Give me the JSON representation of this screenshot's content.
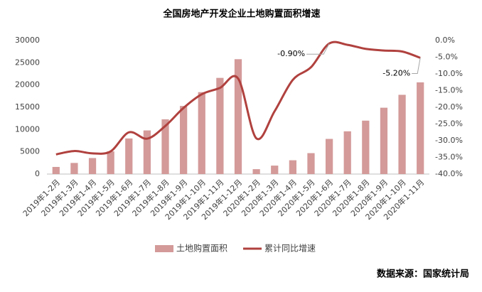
{
  "chart_data": {
    "type": "bar_line",
    "title": "全国房地产开发企业土地购置面积增速",
    "categories": [
      "2019年1-2月",
      "2019年1-3月",
      "2019年1-4月",
      "2019年1-5月",
      "2019年1-6月",
      "2019年1-7月",
      "2019年1-8月",
      "2019年1-9月",
      "2019年1-10月",
      "2019年1-11月",
      "2019年1-12月",
      "2020年1-2月",
      "2020年1-3月",
      "2020年1-4月",
      "2020年1-5月",
      "2020年1-6月",
      "2020年1-7月",
      "2020年1-8月",
      "2020年1-9月",
      "2020年1-10月",
      "2020年1-11月"
    ],
    "series": [
      {
        "name": "土地购置面积",
        "type": "bar",
        "color": "#d39a99",
        "values": [
          1600,
          2500,
          3600,
          5100,
          8000,
          9800,
          12300,
          15300,
          18400,
          21600,
          25800,
          1100,
          1900,
          3100,
          4700,
          7900,
          9600,
          12000,
          14900,
          17800,
          20600
        ]
      },
      {
        "name": "累计同比增速",
        "type": "line",
        "axis": "y2",
        "color": "#b0413e",
        "values": [
          -34.1,
          -33.1,
          -33.8,
          -33.2,
          -27.5,
          -29.4,
          -25.6,
          -20.2,
          -16.1,
          -14.2,
          -11.4,
          -29.3,
          -21.2,
          -11.8,
          -8.0,
          -0.9,
          -1.3,
          -2.5,
          -3.0,
          -3.3,
          -5.2
        ],
        "value_labels": [
          null,
          null,
          null,
          null,
          null,
          null,
          null,
          null,
          null,
          null,
          null,
          null,
          null,
          null,
          null,
          "-0.90%",
          null,
          null,
          null,
          null,
          "-5.20%"
        ]
      }
    ],
    "ylim": [
      0,
      30000
    ],
    "yticks": [
      0,
      5000,
      10000,
      15000,
      20000,
      25000,
      30000
    ],
    "y2lim": [
      -40,
      0
    ],
    "y2ticks": [
      {
        "value": 0,
        "label": "0.0%"
      },
      {
        "value": -5,
        "label": "-5.0%"
      },
      {
        "value": -10,
        "label": "-10.0%"
      },
      {
        "value": -15,
        "label": "-15.0%"
      },
      {
        "value": -20,
        "label": "-20.0%"
      },
      {
        "value": -25,
        "label": "-25.0%"
      },
      {
        "value": -30,
        "label": "-30.0%"
      },
      {
        "value": -35,
        "label": "-35.0%"
      },
      {
        "value": -40,
        "label": "-40.0%"
      }
    ],
    "legend": "bottom",
    "source": "数据来源：国家统计局"
  }
}
